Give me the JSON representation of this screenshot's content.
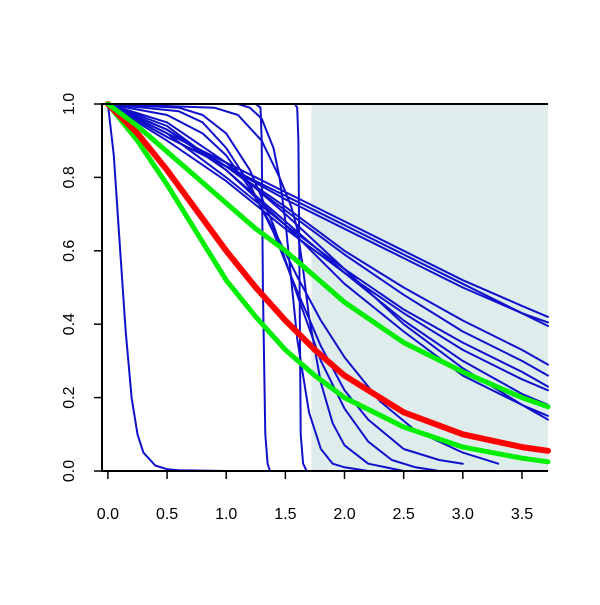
{
  "chart_data": {
    "type": "line",
    "title": "",
    "xlabel": "",
    "ylabel": "",
    "xlim": [
      -0.05,
      3.72
    ],
    "ylim": [
      0,
      1
    ],
    "x_ticks": [
      0.0,
      0.5,
      1.0,
      1.5,
      2.0,
      2.5,
      3.0,
      3.5
    ],
    "x_tick_labels": [
      "0.0",
      "0.5",
      "1.0",
      "1.5",
      "2.0",
      "2.5",
      "3.0",
      "3.5"
    ],
    "y_ticks": [
      0.0,
      0.2,
      0.4,
      0.6,
      0.8,
      1.0
    ],
    "y_tick_labels": [
      "0.0",
      "0.2",
      "0.4",
      "0.6",
      "0.8",
      "1.0"
    ],
    "grid": false,
    "legend": "none",
    "shaded_region": {
      "x_from": 1.72,
      "x_to": 3.72,
      "color": "#deeceb"
    },
    "colors": {
      "blue": "#1010cc",
      "red": "#ff0000",
      "green": "#00ee00",
      "axis": "#000000"
    },
    "series": [
      {
        "color": "#1010cc",
        "width": 2,
        "x": [
          0,
          0.05,
          0.1,
          0.15,
          0.2,
          0.25,
          0.3,
          0.4,
          0.5,
          0.6,
          0.8,
          1.0,
          1.3
        ],
        "y": [
          1,
          0.86,
          0.62,
          0.38,
          0.2,
          0.1,
          0.05,
          0.015,
          0.005,
          0.002,
          0.001,
          0,
          0
        ]
      },
      {
        "color": "#1010cc",
        "width": 2,
        "x": [
          0,
          1.25,
          1.29,
          1.3,
          1.31,
          1.33,
          1.35,
          1.37,
          1.4
        ],
        "y": [
          1,
          1,
          0.99,
          0.9,
          0.5,
          0.1,
          0.02,
          0,
          0
        ]
      },
      {
        "color": "#1010cc",
        "width": 2,
        "x": [
          0,
          1.58,
          1.6,
          1.61,
          1.62,
          1.63,
          1.65,
          1.68
        ],
        "y": [
          1,
          1,
          0.99,
          0.9,
          0.5,
          0.1,
          0.02,
          0
        ]
      },
      {
        "color": "#1010cc",
        "width": 2,
        "x": [
          0,
          1.1,
          1.2,
          1.3,
          1.4,
          1.45,
          1.5,
          1.55,
          1.6,
          1.7,
          1.8,
          1.9,
          2.0,
          2.2,
          2.4
        ],
        "y": [
          1,
          1,
          0.99,
          0.96,
          0.88,
          0.8,
          0.68,
          0.52,
          0.36,
          0.16,
          0.06,
          0.02,
          0.01,
          0,
          0
        ]
      },
      {
        "color": "#1010cc",
        "width": 2,
        "x": [
          0,
          0.9,
          1.1,
          1.3,
          1.45,
          1.55,
          1.6,
          1.65,
          1.7,
          1.8,
          1.9,
          2.0,
          2.2,
          2.5
        ],
        "y": [
          1,
          0.99,
          0.97,
          0.9,
          0.8,
          0.72,
          0.66,
          0.55,
          0.42,
          0.24,
          0.13,
          0.07,
          0.02,
          0
        ]
      },
      {
        "color": "#1010cc",
        "width": 2,
        "x": [
          0,
          0.6,
          0.8,
          1.0,
          1.2,
          1.4,
          1.6,
          1.8,
          2.0,
          2.2,
          2.4,
          2.6,
          2.8
        ],
        "y": [
          1,
          0.99,
          0.97,
          0.92,
          0.82,
          0.67,
          0.48,
          0.3,
          0.17,
          0.08,
          0.03,
          0.01,
          0
        ]
      },
      {
        "color": "#1010cc",
        "width": 2,
        "x": [
          0,
          0.6,
          0.8,
          1.0,
          1.2,
          1.4,
          1.6,
          1.8,
          2.0,
          2.2,
          2.5,
          2.8,
          3.0
        ],
        "y": [
          1,
          0.98,
          0.95,
          0.88,
          0.78,
          0.65,
          0.49,
          0.34,
          0.22,
          0.14,
          0.06,
          0.03,
          0.02
        ]
      },
      {
        "color": "#1010cc",
        "width": 2,
        "x": [
          0,
          0.5,
          0.8,
          1.0,
          1.2,
          1.4,
          1.6,
          1.8,
          2.0,
          2.3,
          2.6,
          3.0,
          3.3
        ],
        "y": [
          1,
          0.97,
          0.92,
          0.86,
          0.77,
          0.66,
          0.53,
          0.41,
          0.31,
          0.19,
          0.11,
          0.05,
          0.02
        ]
      },
      {
        "color": "#1010cc",
        "width": 2,
        "x": [
          0,
          0.5,
          1.0,
          1.5,
          2.0,
          2.5,
          3.0,
          3.5,
          3.72
        ],
        "y": [
          1,
          0.95,
          0.84,
          0.7,
          0.55,
          0.4,
          0.28,
          0.18,
          0.15
        ]
      },
      {
        "color": "#1010cc",
        "width": 2,
        "x": [
          0,
          0.5,
          1.0,
          1.5,
          2.0,
          2.5,
          3.0,
          3.5,
          3.72
        ],
        "y": [
          1,
          0.94,
          0.82,
          0.67,
          0.51,
          0.38,
          0.26,
          0.18,
          0.14
        ]
      },
      {
        "color": "#1010cc",
        "width": 2,
        "x": [
          0,
          0.5,
          1.0,
          1.5,
          2.0,
          2.5,
          3.0,
          3.5,
          3.72
        ],
        "y": [
          1,
          0.93,
          0.82,
          0.68,
          0.54,
          0.41,
          0.3,
          0.21,
          0.18
        ]
      },
      {
        "color": "#1010cc",
        "width": 2,
        "x": [
          0,
          0.5,
          1.0,
          1.5,
          2.0,
          2.5,
          3.0,
          3.5,
          3.72
        ],
        "y": [
          1,
          0.92,
          0.8,
          0.67,
          0.55,
          0.44,
          0.35,
          0.27,
          0.23
        ]
      },
      {
        "color": "#1010cc",
        "width": 2,
        "x": [
          0,
          0.5,
          1.0,
          1.5,
          2.0,
          2.5,
          3.0,
          3.5,
          3.72
        ],
        "y": [
          1,
          0.93,
          0.83,
          0.71,
          0.59,
          0.48,
          0.38,
          0.3,
          0.26
        ]
      },
      {
        "color": "#1010cc",
        "width": 2,
        "x": [
          0,
          0.5,
          1.0,
          1.5,
          2.0,
          2.5,
          3.0,
          3.5,
          3.72
        ],
        "y": [
          1,
          0.93,
          0.83,
          0.72,
          0.6,
          0.5,
          0.41,
          0.33,
          0.29
        ]
      },
      {
        "color": "#1010cc",
        "width": 2,
        "x": [
          0,
          0.5,
          1.0,
          1.5,
          2.0,
          2.5,
          3.0,
          3.5,
          3.72
        ],
        "y": [
          1,
          0.91,
          0.83,
          0.75,
          0.67,
          0.59,
          0.51,
          0.43,
          0.395
        ]
      },
      {
        "color": "#1010cc",
        "width": 2,
        "x": [
          0,
          0.5,
          1.0,
          1.5,
          2.0,
          2.5,
          3.0,
          3.5,
          3.72
        ],
        "y": [
          1,
          0.91,
          0.83,
          0.74,
          0.66,
          0.58,
          0.5,
          0.43,
          0.405
        ]
      },
      {
        "color": "#1010cc",
        "width": 2,
        "x": [
          0,
          0.5,
          1.0,
          1.5,
          2.0,
          2.5,
          3.0,
          3.5,
          3.72
        ],
        "y": [
          1,
          0.92,
          0.84,
          0.76,
          0.68,
          0.6,
          0.52,
          0.45,
          0.42
        ]
      },
      {
        "color": "#1010cc",
        "width": 2,
        "x": [
          0,
          0.5,
          1.0,
          1.5,
          2.0,
          2.5,
          3.0,
          3.5,
          3.72
        ],
        "y": [
          1,
          0.9,
          0.79,
          0.66,
          0.54,
          0.43,
          0.33,
          0.25,
          0.22
        ]
      },
      {
        "color": "#00ee00",
        "width": 5,
        "x": [
          0,
          0.25,
          0.5,
          0.75,
          1.0,
          1.25,
          1.5,
          1.75,
          2.0,
          2.5,
          3.0,
          3.5,
          3.72
        ],
        "y": [
          1,
          0.9,
          0.78,
          0.65,
          0.52,
          0.42,
          0.33,
          0.26,
          0.2,
          0.12,
          0.065,
          0.035,
          0.025
        ]
      },
      {
        "color": "#ff0000",
        "width": 6,
        "x": [
          0,
          0.25,
          0.5,
          0.75,
          1.0,
          1.25,
          1.5,
          1.75,
          2.0,
          2.5,
          3.0,
          3.5,
          3.72
        ],
        "y": [
          1,
          0.92,
          0.82,
          0.71,
          0.6,
          0.5,
          0.41,
          0.33,
          0.26,
          0.16,
          0.1,
          0.065,
          0.055
        ]
      },
      {
        "color": "#00ee00",
        "width": 5,
        "x": [
          0,
          0.25,
          0.5,
          0.75,
          1.0,
          1.25,
          1.5,
          1.75,
          2.0,
          2.5,
          3.0,
          3.5,
          3.72
        ],
        "y": [
          1,
          0.94,
          0.87,
          0.8,
          0.73,
          0.66,
          0.6,
          0.53,
          0.46,
          0.35,
          0.27,
          0.2,
          0.175
        ]
      }
    ]
  }
}
